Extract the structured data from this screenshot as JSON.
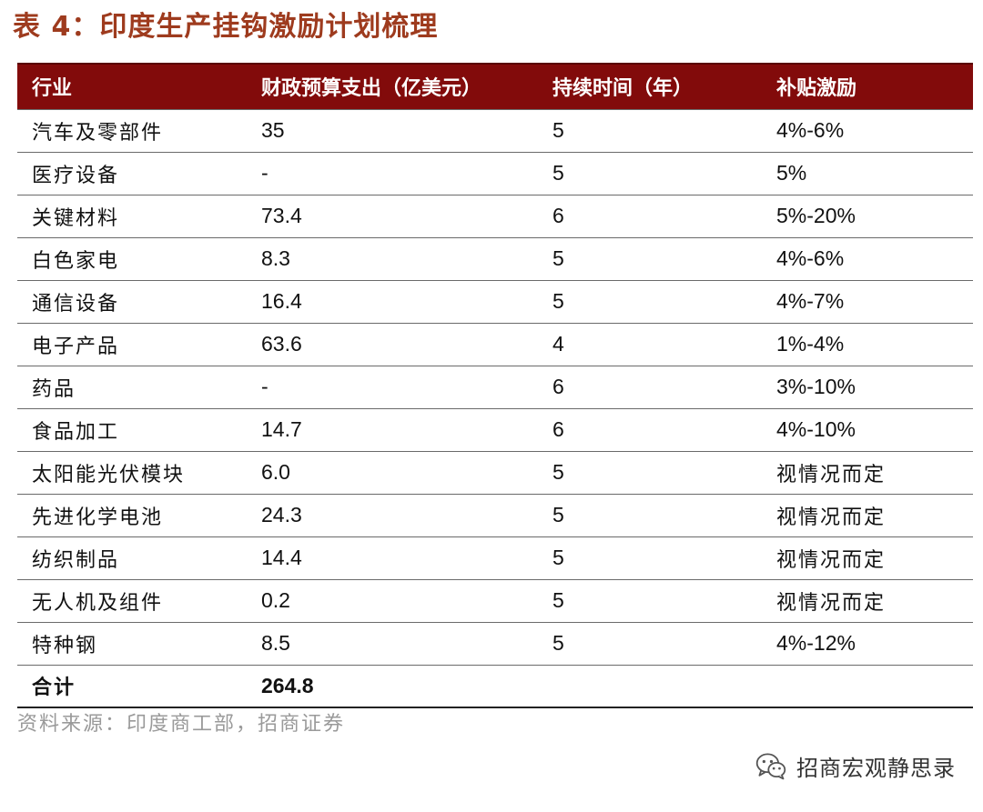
{
  "title": "表 4：印度生产挂钩激励计划梳理",
  "table": {
    "headers": [
      "行业",
      "财政预算支出（亿美元）",
      "持续时间（年）",
      "补贴激励"
    ],
    "rows": [
      [
        "汽车及零部件",
        "35",
        "5",
        "4%-6%"
      ],
      [
        "医疗设备",
        "-",
        "5",
        "5%"
      ],
      [
        "关键材料",
        "73.4",
        "6",
        "5%-20%"
      ],
      [
        "白色家电",
        "8.3",
        "5",
        "4%-6%"
      ],
      [
        "通信设备",
        "16.4",
        "5",
        "4%-7%"
      ],
      [
        "电子产品",
        "63.6",
        "4",
        "1%-4%"
      ],
      [
        "药品",
        "-",
        "6",
        "3%-10%"
      ],
      [
        "食品加工",
        "14.7",
        "6",
        "4%-10%"
      ],
      [
        "太阳能光伏模块",
        "6.0",
        "5",
        "视情况而定"
      ],
      [
        "先进化学电池",
        "24.3",
        "5",
        "视情况而定"
      ],
      [
        "纺织制品",
        "14.4",
        "5",
        "视情况而定"
      ],
      [
        "无人机及组件",
        "0.2",
        "5",
        "视情况而定"
      ],
      [
        "特种钢",
        "8.5",
        "5",
        "4%-12%"
      ]
    ],
    "total": {
      "label": "合计",
      "value": "264.8"
    }
  },
  "source": "资料来源：印度商工部，招商证券",
  "brand": {
    "name": "招商宏观静思录",
    "icon": "wechat-icon"
  },
  "colors": {
    "title": "#9e3b1e",
    "header_bg": "#820b0b",
    "source": "#9a9a9a"
  }
}
